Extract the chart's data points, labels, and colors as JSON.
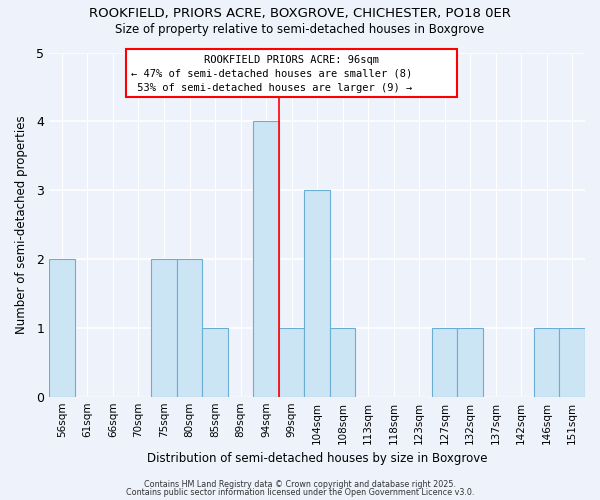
{
  "title1": "ROOKFIELD, PRIORS ACRE, BOXGROVE, CHICHESTER, PO18 0ER",
  "title2": "Size of property relative to semi-detached houses in Boxgrove",
  "xlabel": "Distribution of semi-detached houses by size in Boxgrove",
  "ylabel": "Number of semi-detached properties",
  "categories": [
    "56sqm",
    "61sqm",
    "66sqm",
    "70sqm",
    "75sqm",
    "80sqm",
    "85sqm",
    "89sqm",
    "94sqm",
    "99sqm",
    "104sqm",
    "108sqm",
    "113sqm",
    "118sqm",
    "123sqm",
    "127sqm",
    "132sqm",
    "137sqm",
    "142sqm",
    "146sqm",
    "151sqm"
  ],
  "values": [
    2,
    0,
    0,
    0,
    2,
    2,
    1,
    0,
    4,
    1,
    3,
    1,
    0,
    0,
    0,
    1,
    1,
    0,
    0,
    1,
    1
  ],
  "bar_color": "#cce5f5",
  "bar_edge_color": "#6aaed6",
  "red_line_index": 8,
  "annotation_title": "ROOKFIELD PRIORS ACRE: 96sqm",
  "annotation_line1": "← 47% of semi-detached houses are smaller (8)",
  "annotation_line2": " 53% of semi-detached houses are larger (9) →",
  "footer1": "Contains HM Land Registry data © Crown copyright and database right 2025.",
  "footer2": "Contains public sector information licensed under the Open Government Licence v3.0.",
  "ylim": [
    0,
    5
  ],
  "yticks": [
    0,
    1,
    2,
    3,
    4,
    5
  ],
  "background_color": "#eef3fb"
}
